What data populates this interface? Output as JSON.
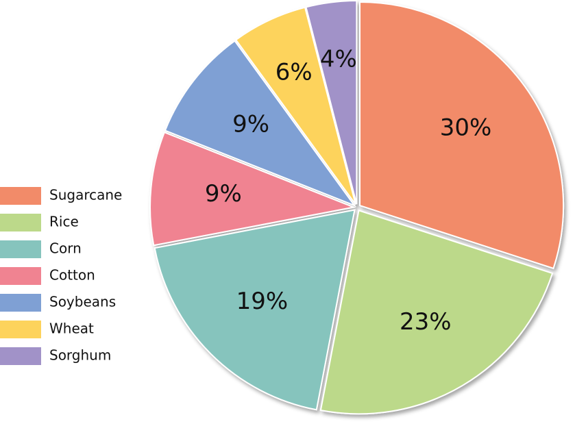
{
  "chart_data": {
    "type": "pie",
    "categories": [
      "Sugarcane",
      "Rice",
      "Corn",
      "Cotton",
      "Soybeans",
      "Wheat",
      "Sorghum"
    ],
    "values": [
      30,
      23,
      19,
      9,
      9,
      6,
      4
    ],
    "value_labels": [
      "30%",
      "23%",
      "19%",
      "9%",
      "9%",
      "6%",
      "4%"
    ],
    "colors": [
      "#f28b69",
      "#bcd98a",
      "#86c4bd",
      "#f08391",
      "#7fa0d4",
      "#fdd35c",
      "#a192c8"
    ],
    "legend": "left"
  }
}
